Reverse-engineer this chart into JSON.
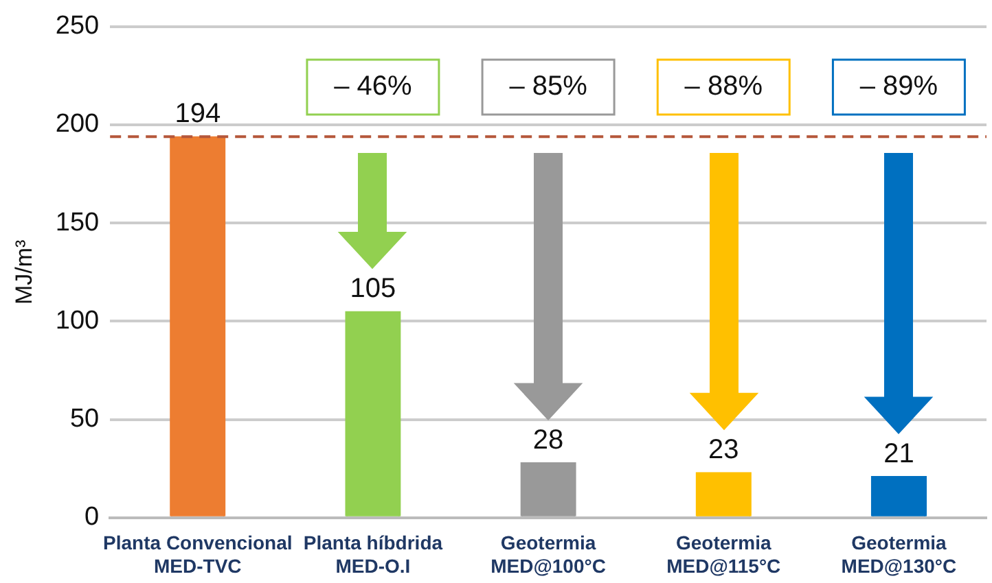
{
  "chart_data": {
    "type": "bar",
    "ylabel": "MJ/m³",
    "categories": [
      "Planta Convencional\nMED-TVC",
      "Planta híbdrida\nMED-O.I",
      "Geotermia\nMED@100°C",
      "Geotermia\nMED@115°C",
      "Geotermia\nMED@130°C"
    ],
    "values": [
      194,
      105,
      28,
      23,
      21
    ],
    "colors": [
      "#ed7d31",
      "#92d050",
      "#999999",
      "#ffc000",
      "#0070c0"
    ],
    "ylim": [
      0,
      250
    ],
    "yticks": [
      0,
      50,
      100,
      150,
      200,
      250
    ],
    "grid": "y",
    "legend": false,
    "data_labels": true,
    "ref_lines": [
      {
        "axis": "y",
        "value": 194,
        "color": "#b5573a",
        "line_style": "dashed"
      }
    ],
    "annotations": [
      "– 46%",
      "– 85%",
      "– 88%",
      "– 89%"
    ]
  }
}
